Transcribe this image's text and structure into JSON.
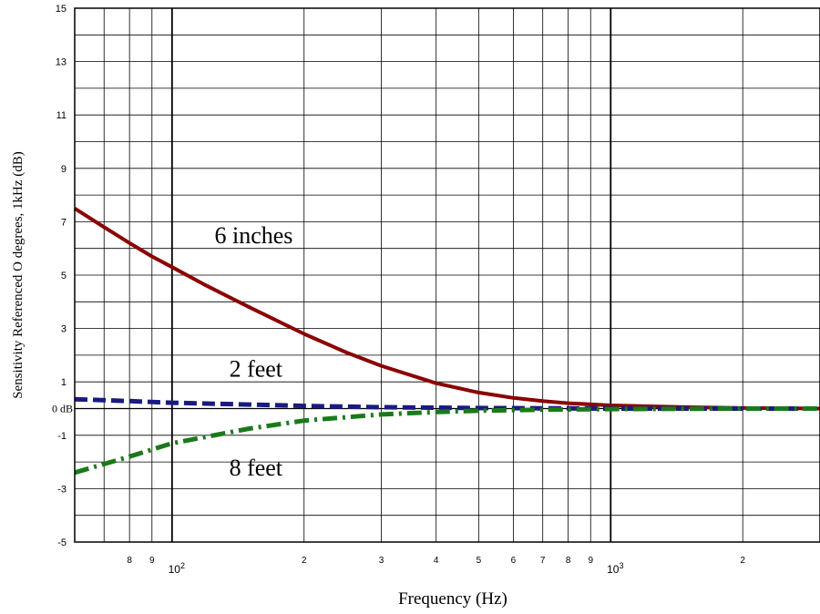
{
  "chart_data": {
    "type": "line",
    "xscale": "log",
    "xlim": [
      60,
      3000
    ],
    "ylim": [
      -5,
      15
    ],
    "xlabel": "Frequency (Hz)",
    "ylabel": "Sensitivity Referenced  O degrees, 1kHz (dB)",
    "grid": true,
    "y_ticks": [
      {
        "value": 15,
        "label": "15"
      },
      {
        "value": 13,
        "label": "13"
      },
      {
        "value": 11,
        "label": "11"
      },
      {
        "value": 9,
        "label": "9"
      },
      {
        "value": 7,
        "label": "7"
      },
      {
        "value": 5,
        "label": "5"
      },
      {
        "value": 3,
        "label": "3"
      },
      {
        "value": 1,
        "label": "1"
      },
      {
        "value": 0,
        "label": "0 dB"
      },
      {
        "value": -1,
        "label": "-1"
      },
      {
        "value": -3,
        "label": "-3"
      },
      {
        "value": -5,
        "label": "-5"
      }
    ],
    "x_ticks": [
      {
        "value": 80,
        "label": "8"
      },
      {
        "value": 90,
        "label": "9"
      },
      {
        "value": 100,
        "label": "10",
        "sup": "2"
      },
      {
        "value": 200,
        "label": "2"
      },
      {
        "value": 300,
        "label": "3"
      },
      {
        "value": 400,
        "label": "4"
      },
      {
        "value": 500,
        "label": "5"
      },
      {
        "value": 600,
        "label": "6"
      },
      {
        "value": 700,
        "label": "7"
      },
      {
        "value": 800,
        "label": "8"
      },
      {
        "value": 900,
        "label": "9"
      },
      {
        "value": 1000,
        "label": "10",
        "sup": "3"
      },
      {
        "value": 2000,
        "label": "2"
      }
    ],
    "series": [
      {
        "name": "6 inches",
        "color": "#8b0000",
        "style": "solid",
        "points": [
          [
            60,
            7.5
          ],
          [
            70,
            6.8
          ],
          [
            80,
            6.2
          ],
          [
            90,
            5.7
          ],
          [
            100,
            5.3
          ],
          [
            120,
            4.6
          ],
          [
            150,
            3.8
          ],
          [
            200,
            2.8
          ],
          [
            250,
            2.1
          ],
          [
            300,
            1.6
          ],
          [
            400,
            0.95
          ],
          [
            500,
            0.6
          ],
          [
            600,
            0.4
          ],
          [
            700,
            0.28
          ],
          [
            800,
            0.2
          ],
          [
            1000,
            0.12
          ],
          [
            1500,
            0.05
          ],
          [
            2000,
            0.02
          ],
          [
            3000,
            0.0
          ]
        ]
      },
      {
        "name": "2 feet",
        "color": "#1a1a80",
        "style": "dashed",
        "points": [
          [
            60,
            0.35
          ],
          [
            80,
            0.28
          ],
          [
            100,
            0.22
          ],
          [
            150,
            0.15
          ],
          [
            200,
            0.1
          ],
          [
            300,
            0.05
          ],
          [
            500,
            0.02
          ],
          [
            700,
            0.01
          ],
          [
            1000,
            0.0
          ],
          [
            2000,
            0.0
          ],
          [
            3000,
            0.0
          ]
        ]
      },
      {
        "name": "8 feet",
        "color": "#1a7a1a",
        "style": "dashdot",
        "points": [
          [
            60,
            -2.4
          ],
          [
            80,
            -1.8
          ],
          [
            100,
            -1.3
          ],
          [
            150,
            -0.75
          ],
          [
            200,
            -0.45
          ],
          [
            300,
            -0.22
          ],
          [
            400,
            -0.13
          ],
          [
            500,
            -0.08
          ],
          [
            700,
            -0.04
          ],
          [
            1000,
            -0.02
          ],
          [
            2000,
            0.0
          ],
          [
            3000,
            0.0
          ]
        ]
      }
    ],
    "annotations": [
      {
        "text": "6 inches",
        "series": "6 inches"
      },
      {
        "text": "2 feet",
        "series": "2 feet"
      },
      {
        "text": "8 feet",
        "series": "8 feet"
      }
    ]
  }
}
